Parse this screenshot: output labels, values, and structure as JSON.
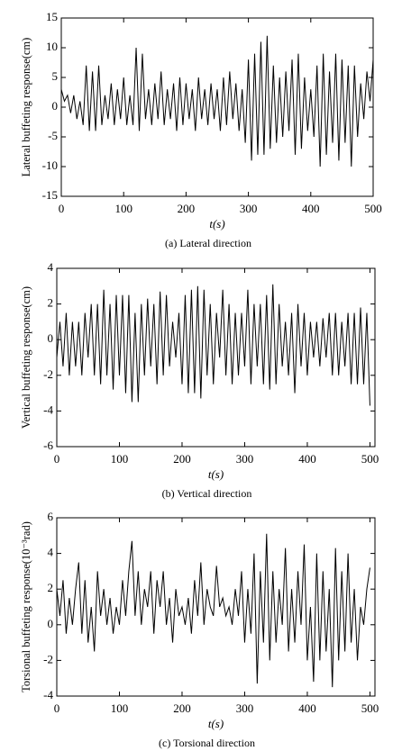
{
  "chart_data": [
    {
      "type": "line",
      "ylabel": "Lateral buffeting response(cm)",
      "xlabel": "t(s)",
      "caption": "(a)  Lateral direction",
      "color": "#000000",
      "xlim": [
        0,
        500
      ],
      "xticks": [
        0,
        100,
        200,
        300,
        400,
        500
      ],
      "ylim": [
        -15,
        15
      ],
      "yticks": [
        -15,
        -10,
        -5,
        0,
        5,
        10,
        15
      ],
      "x": [
        0,
        5,
        10,
        15,
        20,
        25,
        30,
        35,
        40,
        45,
        50,
        55,
        60,
        65,
        70,
        75,
        80,
        85,
        90,
        95,
        100,
        105,
        110,
        115,
        120,
        125,
        130,
        135,
        140,
        145,
        150,
        155,
        160,
        165,
        170,
        175,
        180,
        185,
        190,
        195,
        200,
        205,
        210,
        215,
        220,
        225,
        230,
        235,
        240,
        245,
        250,
        255,
        260,
        265,
        270,
        275,
        280,
        285,
        290,
        295,
        300,
        305,
        310,
        315,
        320,
        325,
        330,
        335,
        340,
        345,
        350,
        355,
        360,
        365,
        370,
        375,
        380,
        385,
        390,
        395,
        400,
        405,
        410,
        415,
        420,
        425,
        430,
        435,
        440,
        445,
        450,
        455,
        460,
        465,
        470,
        475,
        480,
        485,
        490,
        495,
        500
      ],
      "values": [
        3,
        1,
        2,
        -1,
        2,
        -2,
        1,
        -3,
        7,
        -4,
        6,
        -4,
        7,
        -3,
        2,
        -2,
        4,
        -3,
        3,
        -2,
        5,
        -3,
        2,
        -3,
        10,
        -4,
        9,
        -2,
        3,
        -3,
        4,
        -2,
        6,
        -3,
        3,
        -2,
        4,
        -4,
        5,
        -3,
        4,
        -2,
        3,
        -4,
        5,
        -2,
        3,
        -3,
        4,
        -2,
        3,
        -4,
        5,
        -3,
        6,
        -2,
        4,
        -4,
        3,
        -6,
        8,
        -9,
        9,
        -8,
        11,
        -8,
        12,
        -7,
        7,
        -6,
        5,
        -5,
        6,
        -4,
        8,
        -8,
        9,
        -7,
        5,
        -4,
        3,
        -5,
        7,
        -10,
        9,
        -8,
        6,
        -6,
        9,
        -9,
        8,
        -6,
        7,
        -10,
        7,
        -5,
        4,
        -2,
        6,
        1,
        8
      ]
    },
    {
      "type": "line",
      "ylabel": "Vertical buffeting response(cm)",
      "xlabel": "t(s)",
      "caption": "(b)  Vertical direction",
      "color": "#000000",
      "xlim": [
        0,
        508
      ],
      "xticks": [
        0,
        100,
        200,
        300,
        400,
        500
      ],
      "ylim": [
        -6,
        4
      ],
      "yticks": [
        -6,
        -4,
        -2,
        0,
        2,
        4
      ],
      "x": [
        0,
        5,
        10,
        15,
        20,
        25,
        30,
        35,
        40,
        45,
        50,
        55,
        60,
        65,
        70,
        75,
        80,
        85,
        90,
        95,
        100,
        105,
        110,
        115,
        120,
        125,
        130,
        135,
        140,
        145,
        150,
        155,
        160,
        165,
        170,
        175,
        180,
        185,
        190,
        195,
        200,
        205,
        210,
        215,
        220,
        225,
        230,
        235,
        240,
        245,
        250,
        255,
        260,
        265,
        270,
        275,
        280,
        285,
        290,
        295,
        300,
        305,
        310,
        315,
        320,
        325,
        330,
        335,
        340,
        345,
        350,
        355,
        360,
        365,
        370,
        375,
        380,
        385,
        390,
        395,
        400,
        405,
        410,
        415,
        420,
        425,
        430,
        435,
        440,
        445,
        450,
        455,
        460,
        465,
        470,
        475,
        480,
        485,
        490,
        495,
        500
      ],
      "values": [
        -1,
        1,
        -1.5,
        1.5,
        -2,
        1,
        -1.5,
        1,
        -2,
        1.5,
        -1,
        2,
        -2,
        2,
        -2.5,
        2.8,
        -2,
        2,
        -2.8,
        2.5,
        -2,
        2.5,
        -3,
        2.5,
        -3.5,
        1.5,
        -3.5,
        2,
        -2,
        2.3,
        -1.5,
        2,
        -2.5,
        2.7,
        -2,
        2.5,
        -1.5,
        1,
        -1,
        1.5,
        -2.5,
        2.5,
        -3,
        2.8,
        -3,
        3,
        -3.3,
        2.8,
        -2,
        2,
        -2.5,
        1.5,
        -1,
        2.8,
        -2,
        2,
        -2.5,
        1.5,
        -2,
        1.5,
        -1.5,
        2.8,
        -2.5,
        2,
        -1.5,
        2,
        -2.5,
        2.5,
        -2.8,
        3.1,
        -2.5,
        2,
        -1.5,
        1,
        -2,
        1.5,
        -3,
        2,
        -1.5,
        1.5,
        -2,
        1,
        -1,
        1,
        -1.5,
        1.2,
        -1,
        1.5,
        -2,
        1.5,
        -2,
        1,
        -1.5,
        1.5,
        -2.5,
        1.5,
        -2.5,
        1.8,
        -2.5,
        1.5,
        -3.7
      ]
    },
    {
      "type": "line",
      "ylabel": "Torsional buffeting response(10⁻³rad)",
      "xlabel": "t(s)",
      "caption": "(c)  Torsional direction",
      "color": "#000000",
      "xlim": [
        0,
        508
      ],
      "xticks": [
        0,
        100,
        200,
        300,
        400,
        500
      ],
      "ylim": [
        -4,
        6
      ],
      "yticks": [
        -4,
        -2,
        0,
        2,
        4,
        6
      ],
      "x": [
        0,
        5,
        10,
        15,
        20,
        25,
        30,
        35,
        40,
        45,
        50,
        55,
        60,
        65,
        70,
        75,
        80,
        85,
        90,
        95,
        100,
        105,
        110,
        115,
        120,
        125,
        130,
        135,
        140,
        145,
        150,
        155,
        160,
        165,
        170,
        175,
        180,
        185,
        190,
        195,
        200,
        205,
        210,
        215,
        220,
        225,
        230,
        235,
        240,
        245,
        250,
        255,
        260,
        265,
        270,
        275,
        280,
        285,
        290,
        295,
        300,
        305,
        310,
        315,
        320,
        325,
        330,
        335,
        340,
        345,
        350,
        355,
        360,
        365,
        370,
        375,
        380,
        385,
        390,
        395,
        400,
        405,
        410,
        415,
        420,
        425,
        430,
        435,
        440,
        445,
        450,
        455,
        460,
        465,
        470,
        475,
        480,
        485,
        490,
        495,
        500
      ],
      "values": [
        2,
        0.5,
        2.5,
        -0.5,
        1.5,
        0,
        2,
        3.5,
        -0.5,
        2.5,
        -1,
        1,
        -1.5,
        3,
        0.5,
        2,
        0,
        1.5,
        -0.5,
        1,
        0,
        2.5,
        0.5,
        3,
        4.7,
        0.5,
        3,
        0,
        2,
        1,
        3,
        -0.5,
        2.5,
        1,
        3,
        0,
        1.5,
        -1,
        2,
        0.5,
        1,
        0,
        1.5,
        -0.5,
        2.5,
        0.5,
        3.5,
        0,
        2,
        1,
        0.5,
        3.3,
        1,
        1.5,
        0.5,
        1,
        0,
        2,
        0.5,
        3,
        -1,
        2,
        -0.5,
        4,
        -3.3,
        3,
        -1,
        5.1,
        -2,
        3,
        -1,
        2,
        0,
        4.3,
        -1.5,
        2,
        -1,
        3,
        0,
        4.5,
        -2,
        1,
        -3.2,
        4,
        -2,
        3,
        -1.5,
        2,
        -3.5,
        4.3,
        -2,
        3,
        -1.5,
        4,
        -1,
        2,
        -2,
        1,
        0,
        2,
        3.2
      ]
    }
  ]
}
